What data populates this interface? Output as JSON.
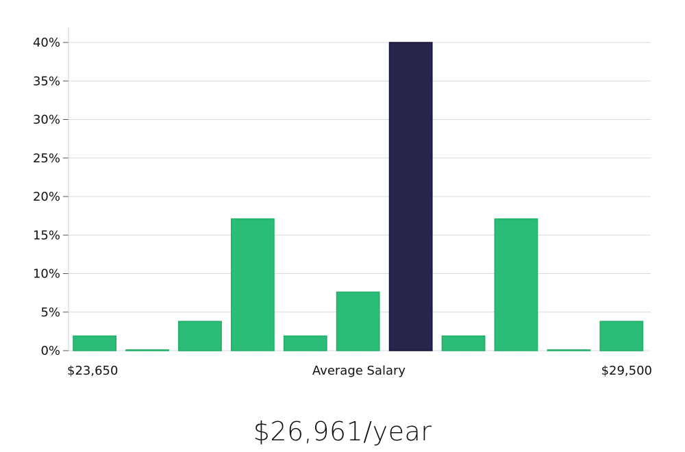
{
  "chart_data": {
    "type": "bar",
    "ylabel": "",
    "y_ticks": [
      "0%",
      "5%",
      "10%",
      "15%",
      "20%",
      "25%",
      "30%",
      "35%",
      "40%"
    ],
    "y_tick_values": [
      0,
      5,
      10,
      15,
      20,
      25,
      30,
      35,
      40
    ],
    "ylim": [
      0,
      42
    ],
    "grid": true,
    "x_label_left": "$23,650",
    "x_label_center": "Average Salary",
    "x_label_right": "$29,500",
    "values": [
      1.9,
      0.1,
      3.8,
      17.1,
      1.9,
      7.6,
      40.0,
      1.9,
      17.1,
      0.1,
      3.8
    ],
    "highlight_index": 6,
    "colors": {
      "bar": "#2bbd77",
      "bar_stroke": "#1fae68",
      "highlight": "#28254a",
      "highlight_stroke": "#141238",
      "grid": "#d9d9d9",
      "axis": "#cccccc"
    }
  },
  "summary": {
    "salary_text": "$26,961/year"
  }
}
